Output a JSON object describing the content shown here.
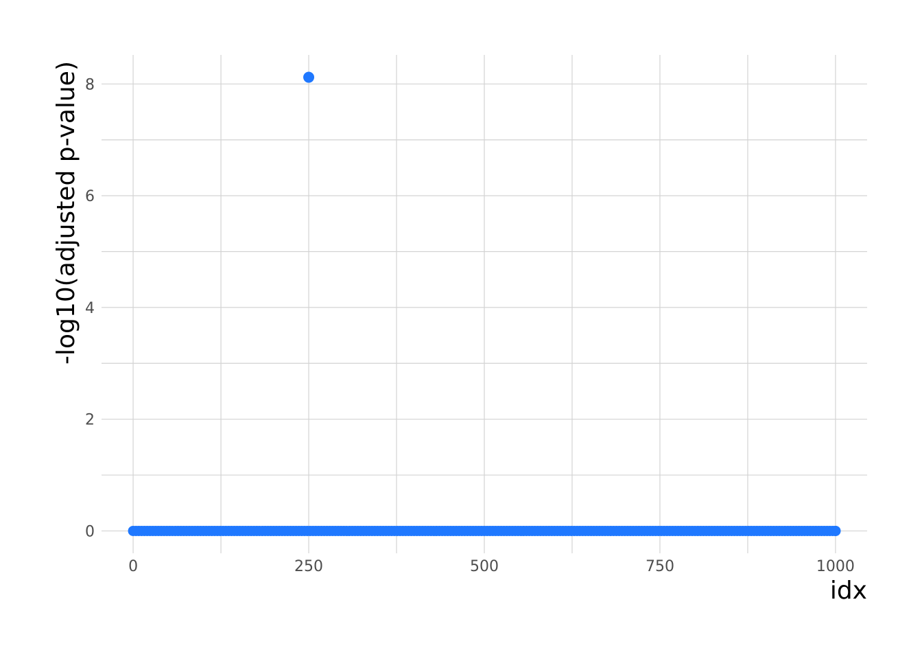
{
  "chart_data": {
    "type": "scatter",
    "xlabel": "idx",
    "ylabel": "-log10(adjusted p-value)",
    "xlim": [
      -45,
      1045
    ],
    "ylim": [
      -0.4,
      8.52
    ],
    "x_ticks": [
      0,
      250,
      500,
      750,
      1000
    ],
    "x_tick_labels": [
      "0",
      "250",
      "500",
      "750",
      "1000"
    ],
    "x_minor_ticks": [
      125,
      375,
      625,
      875
    ],
    "y_ticks": [
      0,
      2,
      4,
      6,
      8
    ],
    "y_tick_labels": [
      "0",
      "2",
      "4",
      "6",
      "8"
    ],
    "y_minor_ticks": [
      1,
      3,
      5,
      7
    ],
    "grid": true,
    "legend": "none",
    "point_color": "#1f78ff",
    "baseline": {
      "x_start": 0,
      "x_end": 1000,
      "y": 0
    },
    "outliers": [
      {
        "x": 250,
        "y": 8.12
      }
    ]
  }
}
